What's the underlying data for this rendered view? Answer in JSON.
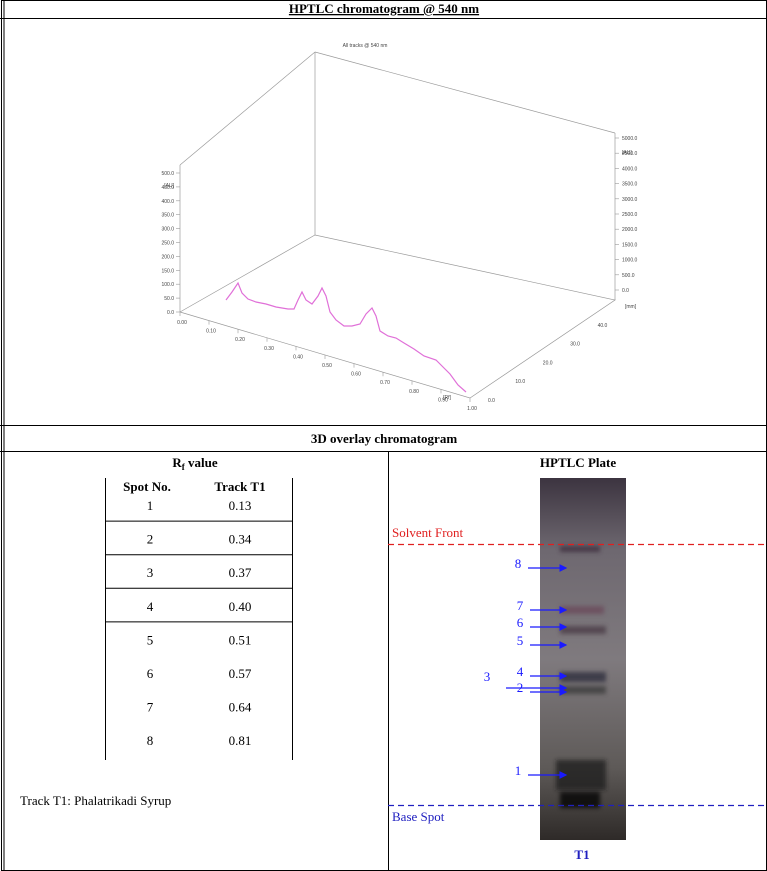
{
  "header": {
    "title": "HPTLC chromatogram @ 540 nm"
  },
  "chromatogram": {
    "caption": "All tracks @ 540 nm",
    "y_axis": {
      "unit": "[AU]",
      "ticks": [
        "0.0",
        "50.0",
        "100.0",
        "150.0",
        "200.0",
        "250.0",
        "300.0",
        "350.0",
        "400.0",
        "450.0",
        "500.0"
      ]
    },
    "y2_axis": {
      "unit": "[AU]",
      "ticks": [
        "0.0",
        "500.0",
        "1000.0",
        "1500.0",
        "2000.0",
        "2500.0",
        "3000.0",
        "3500.0",
        "4000.0",
        "4500.0",
        "5000.0"
      ]
    },
    "x_axis": {
      "unit": "[Rf]",
      "ticks": [
        "0.00",
        "0.10",
        "0.20",
        "0.30",
        "0.40",
        "0.50",
        "0.60",
        "0.70",
        "0.80",
        "0.90",
        "1.00"
      ]
    },
    "z_axis": {
      "unit": "[mm]",
      "ticks": [
        "0.0",
        "10.0",
        "20.0",
        "30.0",
        "40.0",
        "50.0"
      ]
    }
  },
  "overlay_title": "3D overlay chromatogram",
  "rf_panel": {
    "label_main": "R",
    "label_sub": "f",
    "label_rest": " value",
    "table": {
      "header": [
        "Spot No.",
        "Track T1"
      ],
      "rows": [
        [
          "1",
          "0.13"
        ],
        [
          "2",
          "0.34"
        ],
        [
          "3",
          "0.37"
        ],
        [
          "4",
          "0.40"
        ],
        [
          "5",
          "0.51"
        ],
        [
          "6",
          "0.57"
        ],
        [
          "7",
          "0.64"
        ],
        [
          "8",
          "0.81"
        ]
      ]
    },
    "note": "Track T1: Phalatrikadi Syrup"
  },
  "plate_panel": {
    "title": "HPTLC Plate",
    "solvent_front": "Solvent Front",
    "base_spot": "Base Spot",
    "track": "T1",
    "spots": [
      "1",
      "2",
      "3",
      "4",
      "5",
      "6",
      "7",
      "8"
    ]
  }
}
